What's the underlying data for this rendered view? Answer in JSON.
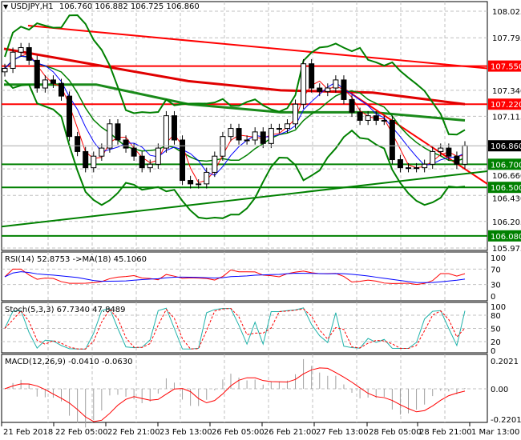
{
  "header": {
    "symbol": "USDJPY,H1",
    "ohlc": "106.760 106.882 106.725 106.860"
  },
  "chart_data": {
    "type": "candlestick",
    "symbol": "USDJPY",
    "timeframe": "H1",
    "ylim": [
      105.975,
      108.025
    ],
    "y_ticks": [
      "108.025",
      "107.795",
      "107.340",
      "107.115",
      "106.660",
      "106.430",
      "106.205",
      "105.975"
    ],
    "x_ticks": [
      "21 Feb 2018",
      "22 Feb 05:00",
      "22 Feb 21:00",
      "23 Feb 13:00",
      "26 Feb 05:00",
      "26 Feb 21:00",
      "27 Feb 13:00",
      "28 Feb 05:00",
      "28 Feb 21:00",
      "1 Mar 13:00"
    ],
    "closes": [
      107.53,
      107.67,
      107.71,
      107.6,
      107.36,
      107.43,
      107.4,
      107.29,
      106.94,
      106.81,
      106.67,
      106.77,
      106.84,
      107.05,
      106.91,
      106.84,
      106.77,
      106.67,
      106.7,
      106.84,
      107.12,
      106.91,
      106.56,
      106.53,
      106.53,
      106.63,
      106.77,
      106.94,
      107.01,
      106.91,
      106.91,
      106.98,
      106.88,
      107.01,
      107.01,
      107.05,
      107.22,
      107.57,
      107.36,
      107.33,
      107.36,
      107.43,
      107.26,
      107.15,
      107.08,
      107.12,
      107.08,
      107.08,
      106.74,
      106.67,
      106.67,
      106.67,
      106.7,
      106.81,
      106.84,
      106.77,
      106.7,
      106.86
    ],
    "current_price": "106.860",
    "levels": [
      {
        "value": "107.550",
        "color": "#ff0000"
      },
      {
        "value": "107.220",
        "color": "#ff0000"
      },
      {
        "value": "106.700",
        "color": "#008000"
      },
      {
        "value": "106.500",
        "color": "#008000"
      },
      {
        "value": "106.080",
        "color": "#008000"
      }
    ],
    "slow_ma_red": [
      107.7,
      107.56,
      107.42,
      107.34,
      107.32,
      107.22
    ],
    "slow_ma_green": [
      107.39,
      107.39,
      107.22,
      107.15,
      107.15,
      107.08
    ],
    "trendlines": [
      {
        "color": "#ff0000",
        "from": 107.9,
        "to": 107.53
      },
      {
        "color": "#ff0000",
        "from": 107.34,
        "to": 106.53,
        "start_fraction": 0.71
      },
      {
        "color": "#008000",
        "from": 106.16,
        "to": 106.64
      }
    ],
    "indicators": {
      "rsi": {
        "label": "RSI(14) 52.8753  ->MA(18) 45.1060",
        "ticks": [
          "100",
          "70",
          "30",
          "0"
        ]
      },
      "stoch": {
        "label": "Stoch(5,3,3) 67.7340 47.8489",
        "ticks": [
          "100",
          "80",
          "50",
          "20",
          "0"
        ]
      },
      "macd": {
        "label": "MACD(12,26,9) -0.0410 -0.0630",
        "ticks": [
          "0.2021",
          "0.00",
          "-0.2201"
        ]
      }
    },
    "colors": {
      "bull": "#008000",
      "bear": "#000000",
      "ma_fast": "#ff0000",
      "ma_mid": "#0000ff",
      "bands": "#008000",
      "stoch_main": "#20b2aa",
      "stoch_signal": "#ff0000"
    }
  }
}
